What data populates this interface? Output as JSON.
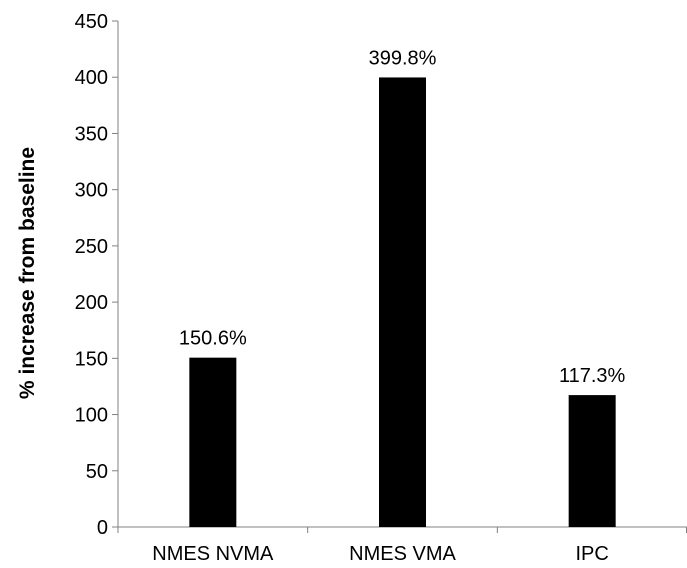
{
  "chart_data": {
    "type": "bar",
    "title": "",
    "xlabel": "",
    "ylabel": "% increase from baseline",
    "categories": [
      "NMES NVMA",
      "NMES VMA",
      "IPC"
    ],
    "values": [
      150.6,
      399.8,
      117.3
    ],
    "data_labels": [
      "150.6%",
      "399.8%",
      "117.3%"
    ],
    "ylim": [
      0,
      450
    ],
    "yticks": [
      0,
      50,
      100,
      150,
      200,
      250,
      300,
      350,
      400,
      450
    ],
    "bar_color": "#000000",
    "grid": false,
    "legend": "none"
  }
}
